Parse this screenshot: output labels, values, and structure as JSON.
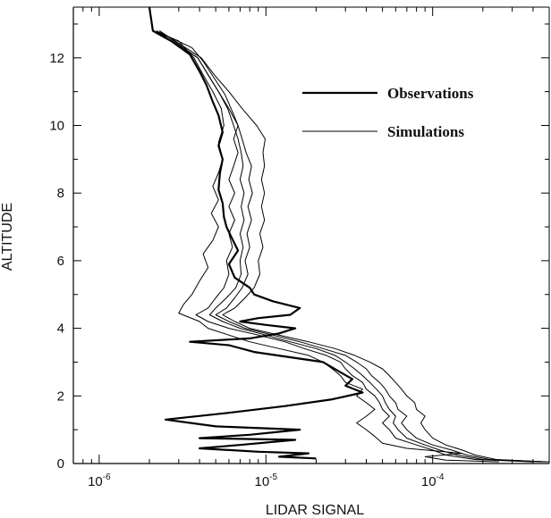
{
  "chart_data": {
    "type": "line",
    "title": "",
    "xlabel": "LIDAR SIGNAL",
    "ylabel": "ALTITUDE",
    "x_scale": "log",
    "xlim": [
      7e-07,
      0.0005
    ],
    "ylim": [
      0,
      13.5
    ],
    "x_ticks": [
      {
        "value": 1e-06,
        "mantissa": "10",
        "exp": "-6"
      },
      {
        "value": 1e-05,
        "mantissa": "10",
        "exp": "-5"
      },
      {
        "value": 0.0001,
        "mantissa": "10",
        "exp": "-4"
      }
    ],
    "y_ticks": [
      0,
      2,
      4,
      6,
      8,
      10,
      12
    ],
    "legend": {
      "placement": "top-right",
      "entries": [
        {
          "label": "Observations",
          "style": "thick"
        },
        {
          "label": "Simulations",
          "style": "thin"
        }
      ]
    },
    "grid": false,
    "series": [
      {
        "name": "Observations",
        "style": "thick",
        "points": [
          [
            2e-05,
            0.15
          ],
          [
            1.2e-05,
            0.2
          ],
          [
            1.8e-05,
            0.3
          ],
          [
            9e-06,
            0.35
          ],
          [
            4e-06,
            0.45
          ],
          [
            7e-06,
            0.55
          ],
          [
            1.5e-05,
            0.7
          ],
          [
            4e-06,
            0.75
          ],
          [
            8e-06,
            0.85
          ],
          [
            1.6e-05,
            1.0
          ],
          [
            5e-06,
            1.1
          ],
          [
            2.5e-06,
            1.3
          ],
          [
            6e-06,
            1.5
          ],
          [
            1.3e-05,
            1.7
          ],
          [
            2.5e-05,
            1.9
          ],
          [
            3.8e-05,
            2.1
          ],
          [
            3e-05,
            2.3
          ],
          [
            3.3e-05,
            2.5
          ],
          [
            2.8e-05,
            2.7
          ],
          [
            2.2e-05,
            3.0
          ],
          [
            8.5e-06,
            3.3
          ],
          [
            6e-06,
            3.5
          ],
          [
            3.5e-06,
            3.6
          ],
          [
            8e-06,
            3.7
          ],
          [
            1.2e-05,
            3.85
          ],
          [
            1.5e-05,
            4.0
          ],
          [
            1e-05,
            4.1
          ],
          [
            7e-06,
            4.2
          ],
          [
            9e-06,
            4.3
          ],
          [
            1.4e-05,
            4.4
          ],
          [
            1.6e-05,
            4.6
          ],
          [
            1.1e-05,
            4.8
          ],
          [
            8.5e-06,
            5.0
          ],
          [
            8e-06,
            5.2
          ],
          [
            6.5e-06,
            5.5
          ],
          [
            6e-06,
            5.9
          ],
          [
            6.8e-06,
            6.3
          ],
          [
            6.2e-06,
            6.7
          ],
          [
            5.8e-06,
            7.0
          ],
          [
            5.6e-06,
            7.3
          ],
          [
            5.5e-06,
            7.7
          ],
          [
            5.2e-06,
            8.1
          ],
          [
            5.3e-06,
            8.6
          ],
          [
            5.5e-06,
            9.0
          ],
          [
            5.2e-06,
            9.4
          ],
          [
            5.5e-06,
            9.8
          ],
          [
            5.2e-06,
            10.3
          ],
          [
            4.8e-06,
            10.7
          ],
          [
            4.4e-06,
            11.2
          ],
          [
            4e-06,
            11.6
          ],
          [
            3.5e-06,
            12.1
          ],
          [
            2.7e-06,
            12.5
          ],
          [
            2.1e-06,
            12.8
          ],
          [
            2e-06,
            13.5
          ]
        ]
      },
      {
        "name": "",
        "style": "thin",
        "points": [
          [
            0.00025,
            0.05
          ],
          [
            0.00012,
            0.1
          ],
          [
            9e-05,
            0.2
          ],
          [
            0.00015,
            0.3
          ],
          [
            7e-05,
            0.45
          ],
          [
            5e-05,
            0.6
          ],
          [
            4.5e-05,
            0.8
          ],
          [
            4e-05,
            1.0
          ],
          [
            3.5e-05,
            1.2
          ],
          [
            4e-05,
            1.4
          ],
          [
            4.5e-05,
            1.6
          ],
          [
            4e-05,
            1.8
          ],
          [
            3.5e-05,
            2.0
          ],
          [
            3.8e-05,
            2.2
          ],
          [
            3e-05,
            2.4
          ],
          [
            2.8e-05,
            2.6
          ],
          [
            2.5e-05,
            2.8
          ],
          [
            2.2e-05,
            3.0
          ],
          [
            1.8e-05,
            3.2
          ],
          [
            1.2e-05,
            3.4
          ],
          [
            8e-06,
            3.6
          ],
          [
            6e-06,
            3.8
          ],
          [
            4.5e-06,
            4.0
          ],
          [
            4e-06,
            4.2
          ],
          [
            3e-06,
            4.45
          ],
          [
            3.2e-06,
            4.7
          ],
          [
            3.6e-06,
            5.0
          ],
          [
            4e-06,
            5.4
          ],
          [
            4.5e-06,
            5.8
          ],
          [
            4.2e-06,
            6.2
          ],
          [
            4.8e-06,
            6.6
          ],
          [
            5.2e-06,
            7.0
          ],
          [
            4.7e-06,
            7.4
          ],
          [
            5.2e-06,
            7.8
          ],
          [
            4.8e-06,
            8.2
          ],
          [
            5.2e-06,
            8.6
          ],
          [
            5.5e-06,
            9.0
          ],
          [
            5.2e-06,
            9.5
          ],
          [
            5.6e-06,
            10.0
          ],
          [
            5.4e-06,
            10.5
          ],
          [
            4.8e-06,
            11.0
          ],
          [
            4.2e-06,
            11.5
          ],
          [
            3.7e-06,
            12.0
          ],
          [
            3e-06,
            12.5
          ],
          [
            2.1e-06,
            12.8
          ]
        ]
      },
      {
        "name": "",
        "style": "thin",
        "points": [
          [
            0.0004,
            0.05
          ],
          [
            0.00018,
            0.12
          ],
          [
            0.00012,
            0.25
          ],
          [
            0.0001,
            0.4
          ],
          [
            8e-05,
            0.55
          ],
          [
            6e-05,
            0.75
          ],
          [
            5.5e-05,
            1.0
          ],
          [
            5e-05,
            1.2
          ],
          [
            5.5e-05,
            1.4
          ],
          [
            5e-05,
            1.6
          ],
          [
            4.8e-05,
            1.8
          ],
          [
            4.5e-05,
            2.0
          ],
          [
            4e-05,
            2.2
          ],
          [
            3.8e-05,
            2.4
          ],
          [
            3.3e-05,
            2.6
          ],
          [
            3e-05,
            2.8
          ],
          [
            2.8e-05,
            3.0
          ],
          [
            2.3e-05,
            3.2
          ],
          [
            1.7e-05,
            3.4
          ],
          [
            1.3e-05,
            3.6
          ],
          [
            9e-06,
            3.8
          ],
          [
            6e-06,
            4.0
          ],
          [
            4.5e-06,
            4.2
          ],
          [
            3.8e-06,
            4.4
          ],
          [
            4.5e-06,
            4.6
          ],
          [
            5e-06,
            4.9
          ],
          [
            5.6e-06,
            5.2
          ],
          [
            6e-06,
            5.6
          ],
          [
            5.8e-06,
            6.0
          ],
          [
            6.3e-06,
            6.4
          ],
          [
            6e-06,
            6.8
          ],
          [
            6.5e-06,
            7.2
          ],
          [
            6e-06,
            7.6
          ],
          [
            6.5e-06,
            8.0
          ],
          [
            6e-06,
            8.4
          ],
          [
            6.4e-06,
            8.8
          ],
          [
            6.8e-06,
            9.2
          ],
          [
            6.4e-06,
            9.6
          ],
          [
            6.8e-06,
            10.0
          ],
          [
            6.3e-06,
            10.4
          ],
          [
            5.7e-06,
            10.9
          ],
          [
            4.9e-06,
            11.4
          ],
          [
            4.2e-06,
            11.9
          ],
          [
            3.6e-06,
            12.3
          ],
          [
            2.2e-06,
            12.8
          ]
        ]
      },
      {
        "name": "",
        "style": "thin",
        "points": [
          [
            0.0005,
            0.05
          ],
          [
            0.00022,
            0.12
          ],
          [
            0.00016,
            0.25
          ],
          [
            0.00013,
            0.4
          ],
          [
            0.0001,
            0.55
          ],
          [
            8e-05,
            0.75
          ],
          [
            7e-05,
            1.0
          ],
          [
            6.5e-05,
            1.2
          ],
          [
            7e-05,
            1.4
          ],
          [
            6.2e-05,
            1.6
          ],
          [
            6e-05,
            1.8
          ],
          [
            5.5e-05,
            2.0
          ],
          [
            5.2e-05,
            2.2
          ],
          [
            4.8e-05,
            2.4
          ],
          [
            4.3e-05,
            2.6
          ],
          [
            4e-05,
            2.8
          ],
          [
            3.5e-05,
            3.0
          ],
          [
            3e-05,
            3.2
          ],
          [
            2.2e-05,
            3.4
          ],
          [
            1.6e-05,
            3.6
          ],
          [
            1.1e-05,
            3.8
          ],
          [
            7.5e-06,
            4.0
          ],
          [
            6e-06,
            4.2
          ],
          [
            5e-06,
            4.4
          ],
          [
            5.8e-06,
            4.6
          ],
          [
            6.5e-06,
            4.9
          ],
          [
            7.2e-06,
            5.2
          ],
          [
            7.8e-06,
            5.6
          ],
          [
            7.5e-06,
            6.0
          ],
          [
            8e-06,
            6.4
          ],
          [
            7.7e-06,
            6.8
          ],
          [
            8.2e-06,
            7.2
          ],
          [
            7.8e-06,
            7.6
          ],
          [
            8.3e-06,
            8.0
          ],
          [
            7.9e-06,
            8.4
          ],
          [
            8.2e-06,
            8.8
          ],
          [
            7.6e-06,
            9.2
          ],
          [
            7.2e-06,
            9.6
          ],
          [
            6.8e-06,
            10.0
          ],
          [
            6e-06,
            10.5
          ],
          [
            5.2e-06,
            11.0
          ],
          [
            4.5e-06,
            11.5
          ],
          [
            3.9e-06,
            12.0
          ],
          [
            2.3e-06,
            12.8
          ]
        ]
      },
      {
        "name": "",
        "style": "thin",
        "points": [
          [
            0.00045,
            0.05
          ],
          [
            0.0002,
            0.12
          ],
          [
            0.00014,
            0.25
          ],
          [
            0.00011,
            0.4
          ],
          [
            9e-05,
            0.55
          ],
          [
            7e-05,
            0.75
          ],
          [
            6.2e-05,
            1.0
          ],
          [
            5.8e-05,
            1.2
          ],
          [
            6e-05,
            1.4
          ],
          [
            5.5e-05,
            1.6
          ],
          [
            5.2e-05,
            1.8
          ],
          [
            5e-05,
            2.0
          ],
          [
            4.6e-05,
            2.2
          ],
          [
            4.2e-05,
            2.4
          ],
          [
            3.8e-05,
            2.6
          ],
          [
            3.4e-05,
            2.8
          ],
          [
            3e-05,
            3.0
          ],
          [
            2.6e-05,
            3.2
          ],
          [
            2e-05,
            3.4
          ],
          [
            1.4e-05,
            3.6
          ],
          [
            1e-05,
            3.8
          ],
          [
            7e-06,
            4.0
          ],
          [
            5.5e-06,
            4.2
          ],
          [
            4.6e-06,
            4.4
          ],
          [
            5e-06,
            4.6
          ],
          [
            5.8e-06,
            4.9
          ],
          [
            6.6e-06,
            5.2
          ],
          [
            7.1e-06,
            5.6
          ],
          [
            7e-06,
            6.0
          ],
          [
            7.3e-06,
            6.4
          ],
          [
            7e-06,
            6.8
          ],
          [
            7.4e-06,
            7.2
          ],
          [
            7.1e-06,
            7.6
          ],
          [
            7.4e-06,
            8.0
          ],
          [
            7e-06,
            8.4
          ],
          [
            7.3e-06,
            8.8
          ],
          [
            7.1e-06,
            9.2
          ],
          [
            6.8e-06,
            9.6
          ],
          [
            6.4e-06,
            10.0
          ],
          [
            5.9e-06,
            10.5
          ],
          [
            5.2e-06,
            11.0
          ],
          [
            4.5e-06,
            11.5
          ],
          [
            3.9e-06,
            12.0
          ],
          [
            2.2e-06,
            12.8
          ]
        ]
      },
      {
        "name": "",
        "style": "thin",
        "points": [
          [
            0.00048,
            0.05
          ],
          [
            0.00024,
            0.12
          ],
          [
            0.00018,
            0.25
          ],
          [
            0.00015,
            0.4
          ],
          [
            0.00012,
            0.55
          ],
          [
            0.0001,
            0.75
          ],
          [
            9e-05,
            1.0
          ],
          [
            8.5e-05,
            1.2
          ],
          [
            9e-05,
            1.4
          ],
          [
            8e-05,
            1.6
          ],
          [
            7.8e-05,
            1.8
          ],
          [
            7e-05,
            2.0
          ],
          [
            6.5e-05,
            2.2
          ],
          [
            6e-05,
            2.4
          ],
          [
            5.5e-05,
            2.6
          ],
          [
            5e-05,
            2.8
          ],
          [
            4.2e-05,
            3.0
          ],
          [
            3.4e-05,
            3.2
          ],
          [
            2.6e-05,
            3.4
          ],
          [
            1.8e-05,
            3.6
          ],
          [
            1.2e-05,
            3.8
          ],
          [
            8e-06,
            4.0
          ],
          [
            6.5e-06,
            4.2
          ],
          [
            5.5e-06,
            4.4
          ],
          [
            6.5e-06,
            4.6
          ],
          [
            7.5e-06,
            4.9
          ],
          [
            8.5e-06,
            5.2
          ],
          [
            9.2e-06,
            5.6
          ],
          [
            9e-06,
            6.0
          ],
          [
            9.6e-06,
            6.4
          ],
          [
            9.2e-06,
            6.8
          ],
          [
            9.8e-06,
            7.2
          ],
          [
            9.4e-06,
            7.6
          ],
          [
            9.8e-06,
            8.0
          ],
          [
            9.4e-06,
            8.4
          ],
          [
            9.8e-06,
            8.8
          ],
          [
            9.6e-06,
            9.2
          ],
          [
            9.9e-06,
            9.6
          ],
          [
            8.8e-06,
            10.0
          ],
          [
            7.2e-06,
            10.5
          ],
          [
            6e-06,
            11.0
          ],
          [
            4.9e-06,
            11.5
          ],
          [
            4.1e-06,
            12.0
          ],
          [
            2.3e-06,
            12.8
          ]
        ]
      }
    ]
  }
}
